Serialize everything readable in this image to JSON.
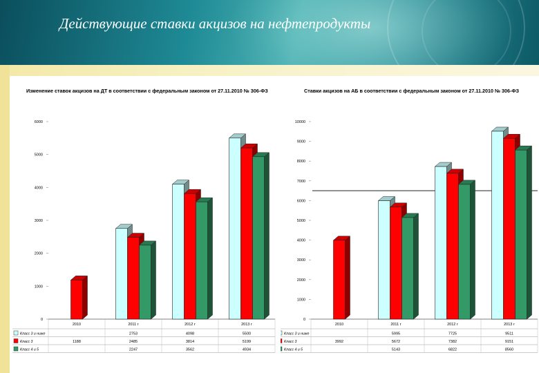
{
  "slide": {
    "title": "Действующие ставки акцизов на нефтепродукты"
  },
  "colors": {
    "banner_dark": "#0b4e5c",
    "banner_light": "#4fb3b4",
    "stripe": "#f3e9a8",
    "series": [
      "#ccffff",
      "#ff0000",
      "#339966"
    ]
  },
  "chart_data": [
    {
      "type": "bar",
      "title": "Изменение ставок акцизов на ДТ в соответствии с федеральным законом от 27.11.2010 № 306-ФЗ",
      "categories": [
        "2010",
        "2011 г",
        "2012 г",
        "2013 г"
      ],
      "ylim": [
        0,
        6000
      ],
      "yticks": [
        0,
        1000,
        2000,
        3000,
        4000,
        5000,
        6000
      ],
      "series": [
        {
          "name": "Класс 3 и ниже",
          "color": "#ccffff",
          "values": [
            null,
            2753,
            4098,
            5500
          ]
        },
        {
          "name": "Класс 3",
          "color": "#ff0000",
          "values": [
            1188,
            2485,
            3814,
            5199
          ]
        },
        {
          "name": "Класс 4 и 5",
          "color": "#339966",
          "values": [
            null,
            2247,
            3562,
            4934
          ]
        }
      ],
      "table": [
        [
          "",
          "2753",
          "4098",
          "5500"
        ],
        [
          "1188",
          "2485",
          "3814",
          "5199"
        ],
        [
          "",
          "2247",
          "3562",
          "4934"
        ]
      ],
      "grid": false,
      "legend": "table-bottom"
    },
    {
      "type": "bar",
      "title": "Ставки акцизов на АБ в соответствии с федеральным законом от 27.11.2010 № 306-ФЗ",
      "categories": [
        "2010",
        "2011 г",
        "2012 г",
        "2013 г"
      ],
      "ylim": [
        0,
        10000
      ],
      "yticks": [
        0,
        1000,
        2000,
        3000,
        4000,
        5000,
        6000,
        7000,
        8000,
        9000,
        10000
      ],
      "reference_line": 6500,
      "series": [
        {
          "name": "Класс 3 и ниже",
          "color": "#ccffff",
          "values": [
            null,
            5995,
            7725,
            9511
          ]
        },
        {
          "name": "Класс 3",
          "color": "#ff0000",
          "values": [
            3992,
            5672,
            7382,
            9151
          ]
        },
        {
          "name": "Класс 4 и 5",
          "color": "#339966",
          "values": [
            null,
            5143,
            6822,
            8560
          ]
        }
      ],
      "table": [
        [
          "",
          "5995",
          "7725",
          "9511"
        ],
        [
          "3992",
          "5672",
          "7382",
          "9151"
        ],
        [
          "",
          "5143",
          "6822",
          "8560"
        ]
      ],
      "grid": false,
      "legend": "table-bottom"
    }
  ]
}
